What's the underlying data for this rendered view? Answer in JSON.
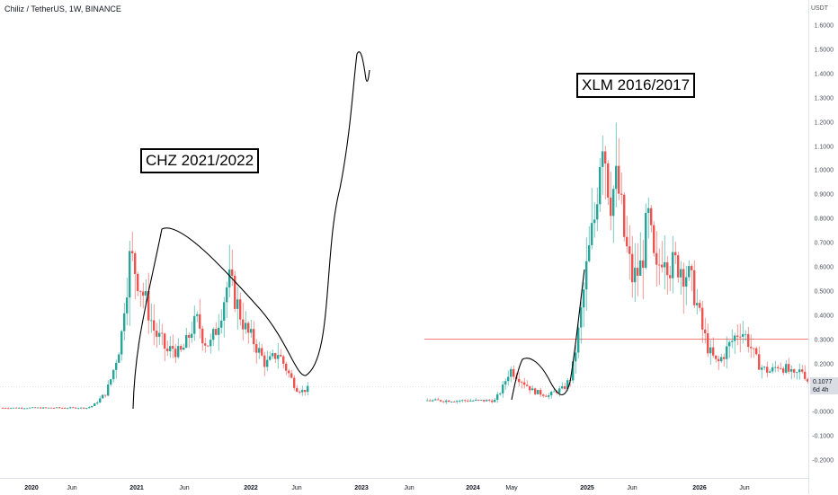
{
  "header": {
    "symbol_title": "Chiliz / TetherUS, 1W, BINANCE"
  },
  "price_axis": {
    "unit": "USDT",
    "ticks": [
      "1.6000",
      "1.5000",
      "1.4000",
      "1.3000",
      "1.2000",
      "1.1000",
      "1.0000",
      "0.9000",
      "0.8000",
      "0.7000",
      "0.6000",
      "0.5000",
      "0.4000",
      "0.3000",
      "0.2000",
      "0.1000",
      "-0.0000",
      "-0.1000",
      "-0.2000"
    ],
    "last_price": "0.1077",
    "countdown": "6d 4h"
  },
  "time_axis": {
    "labels": [
      {
        "text": "2020",
        "major": true
      },
      {
        "text": "Jun",
        "major": false
      },
      {
        "text": "2021",
        "major": true
      },
      {
        "text": "Jun",
        "major": false
      },
      {
        "text": "2022",
        "major": true
      },
      {
        "text": "Jun",
        "major": false
      },
      {
        "text": "2023",
        "major": true
      },
      {
        "text": "Jun",
        "major": false
      },
      {
        "text": "2024",
        "major": true
      },
      {
        "text": "May",
        "major": false
      },
      {
        "text": "2025",
        "major": true
      },
      {
        "text": "Jun",
        "major": false
      },
      {
        "text": "2026",
        "major": true
      },
      {
        "text": "Jun",
        "major": false
      }
    ]
  },
  "annotations": {
    "left_label": "CHZ 2021/2022",
    "right_label": "XLM 2016/2017"
  },
  "colors": {
    "up": "#26a69a",
    "down": "#ef5350",
    "hline": "#ef5350",
    "drawing": "#000000"
  },
  "chart_data": {
    "type": "candlestick",
    "title": "Chiliz / TetherUS, 1W, BINANCE",
    "ylabel": "USDT",
    "ylim": [
      -0.25,
      1.65
    ],
    "last_price": 0.1077,
    "horizontal_levels": [
      0.305
    ],
    "series": [
      {
        "name": "CHZ 2021/2022",
        "close_path": [
          [
            0,
            0.02
          ],
          [
            28,
            0.02
          ],
          [
            30,
            0.03
          ],
          [
            34,
            0.08
          ],
          [
            36,
            0.15
          ],
          [
            39,
            0.3
          ],
          [
            40,
            0.45
          ],
          [
            41,
            0.55
          ],
          [
            42,
            0.65
          ],
          [
            44,
            0.58
          ],
          [
            46,
            0.5
          ],
          [
            48,
            0.42
          ],
          [
            50,
            0.33
          ],
          [
            52,
            0.3
          ],
          [
            54,
            0.25
          ],
          [
            56,
            0.27
          ],
          [
            58,
            0.24
          ],
          [
            60,
            0.28
          ],
          [
            62,
            0.35
          ],
          [
            64,
            0.38
          ],
          [
            66,
            0.3
          ],
          [
            68,
            0.28
          ],
          [
            70,
            0.35
          ],
          [
            72,
            0.45
          ],
          [
            74,
            0.55
          ],
          [
            76,
            0.48
          ],
          [
            78,
            0.4
          ],
          [
            80,
            0.33
          ],
          [
            82,
            0.3
          ],
          [
            84,
            0.25
          ],
          [
            86,
            0.2
          ],
          [
            88,
            0.22
          ],
          [
            90,
            0.25
          ],
          [
            92,
            0.2
          ],
          [
            94,
            0.15
          ],
          [
            96,
            0.1
          ],
          [
            98,
            0.09
          ],
          [
            100,
            0.1
          ]
        ]
      },
      {
        "name": "XLM 2016/2017",
        "close_path": [
          [
            0,
            0.05
          ],
          [
            18,
            0.05
          ],
          [
            20,
            0.1
          ],
          [
            22,
            0.18
          ],
          [
            24,
            0.15
          ],
          [
            26,
            0.12
          ],
          [
            28,
            0.09
          ],
          [
            30,
            0.08
          ],
          [
            32,
            0.07
          ],
          [
            34,
            0.09
          ],
          [
            36,
            0.1
          ],
          [
            38,
            0.15
          ],
          [
            40,
            0.35
          ],
          [
            42,
            0.6
          ],
          [
            44,
            0.8
          ],
          [
            46,
            1.2
          ],
          [
            48,
            0.9
          ],
          [
            50,
            0.95
          ],
          [
            52,
            0.7
          ],
          [
            54,
            0.55
          ],
          [
            56,
            0.6
          ],
          [
            58,
            0.8
          ],
          [
            60,
            0.55
          ],
          [
            62,
            0.7
          ],
          [
            64,
            0.6
          ],
          [
            66,
            0.62
          ],
          [
            68,
            0.58
          ],
          [
            70,
            0.5
          ],
          [
            72,
            0.35
          ],
          [
            74,
            0.25
          ],
          [
            76,
            0.2
          ],
          [
            78,
            0.25
          ],
          [
            80,
            0.3
          ],
          [
            82,
            0.35
          ],
          [
            84,
            0.3
          ],
          [
            86,
            0.22
          ],
          [
            88,
            0.18
          ],
          [
            90,
            0.17
          ],
          [
            92,
            0.2
          ],
          [
            94,
            0.18
          ],
          [
            96,
            0.15
          ],
          [
            98,
            0.18
          ],
          [
            100,
            0.12
          ]
        ]
      }
    ],
    "annotations": [
      "CHZ 2021/2022",
      "XLM 2016/2017"
    ]
  }
}
